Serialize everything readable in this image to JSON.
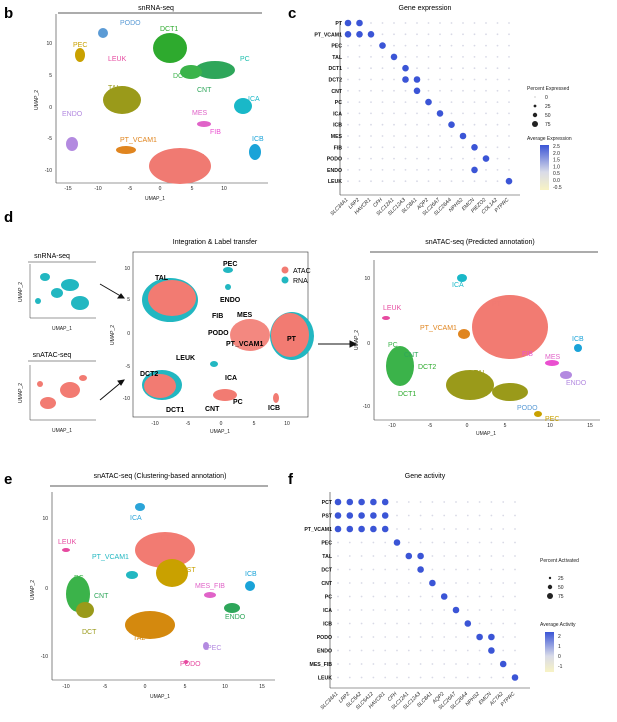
{
  "panels": {
    "b": {
      "letter": "b",
      "title": "snRNA-seq",
      "xlabel": "UMAP_1",
      "ylabel": "UMAP_2",
      "xticks": [
        "-15",
        "-10",
        "-5",
        "0",
        "5",
        "10"
      ],
      "yticks": [
        "10",
        "5",
        "0",
        "-5",
        "-10"
      ],
      "clusters": [
        {
          "name": "PODO",
          "color": "#5b9bd5"
        },
        {
          "name": "PEC",
          "color": "#c9a100"
        },
        {
          "name": "LEUK",
          "color": "#e64aa0"
        },
        {
          "name": "DCT1",
          "color": "#2eaa2e"
        },
        {
          "name": "PC",
          "color": "#1fbfae"
        },
        {
          "name": "DCT2",
          "color": "#3bb34a"
        },
        {
          "name": "CNT",
          "color": "#2ea65a"
        },
        {
          "name": "TAL",
          "color": "#9a9a1a"
        },
        {
          "name": "ICA",
          "color": "#19b8c8"
        },
        {
          "name": "ENDO",
          "color": "#b38ae0"
        },
        {
          "name": "MES",
          "color": "#e063c8"
        },
        {
          "name": "FIB",
          "color": "#ea4fd0"
        },
        {
          "name": "ICB",
          "color": "#1aa3d8"
        },
        {
          "name": "PT_VCAM1",
          "color": "#e0851f"
        },
        {
          "name": "PT",
          "color": "#f07a72"
        }
      ]
    },
    "c": {
      "letter": "c",
      "title": "Gene expression",
      "rows": [
        "PT",
        "PT_VCAM1",
        "PEC",
        "TAL",
        "DCT1",
        "DCT2",
        "CNT",
        "PC",
        "ICA",
        "ICB",
        "MES",
        "FIB",
        "PODO",
        "ENDO",
        "LEUK"
      ],
      "genes": [
        "SLC34A1",
        "LRP2",
        "HAVCR1",
        "CFH",
        "SLC12A1",
        "SLC12A3",
        "SLC8A1",
        "AQP2",
        "SLC26A7",
        "SLC26A4",
        "NPHS2",
        "EMCN",
        "PIEZO2",
        "COL1A2",
        "PTPRC"
      ],
      "legend_pct_title": "Percent Expressed",
      "legend_pct": [
        "0",
        "25",
        "50",
        "75"
      ],
      "legend_avg_title": "Average Expression",
      "legend_avg": [
        "2.5",
        "2.0",
        "1.5",
        "1.0",
        "0.5",
        "0.0",
        "-0.5"
      ]
    },
    "d": {
      "letter": "d",
      "left_top_title": "snRNA-seq",
      "left_bottom_title": "snATAC-seq",
      "mid_title": "Integration & Label transfer",
      "right_title": "snATAC-seq (Predicted annotation)",
      "xlabel": "UMAP_1",
      "ylabel": "UMAP_2",
      "mid_xticks": [
        "-10",
        "-5",
        "0",
        "5",
        "10"
      ],
      "mid_yticks": [
        "10",
        "5",
        "0",
        "-5",
        "-10"
      ],
      "right_xticks": [
        "-10",
        "-5",
        "0",
        "5",
        "10",
        "15"
      ],
      "right_yticks": [
        "10",
        "0",
        "-10"
      ],
      "legend": [
        {
          "name": "ATAC",
          "color": "#f27b72"
        },
        {
          "name": "RNA",
          "color": "#22b7c1"
        }
      ],
      "mid_labels": [
        "PEC",
        "TAL",
        "ENDO",
        "FIB",
        "MES",
        "PODO",
        "PT_VCAM1",
        "PT",
        "LEUK",
        "ICA",
        "DCT2",
        "CNT",
        "PC",
        "DCT1",
        "ICB"
      ],
      "right_labels": [
        "ICA",
        "LEUK",
        "PT",
        "PT_VCAM1",
        "ICB",
        "PC",
        "CNT",
        "DCT2",
        "TAL",
        "FIB",
        "MES",
        "ENDO",
        "DCT1",
        "PODO",
        "PEC"
      ]
    },
    "e": {
      "letter": "e",
      "title": "snATAC-seq (Clustering-based annotation)",
      "xlabel": "UMAP_1",
      "ylabel": "UMAP_2",
      "xticks": [
        "-10",
        "-5",
        "0",
        "5",
        "10",
        "15"
      ],
      "yticks": [
        "10",
        "0",
        "-10"
      ],
      "labels": [
        "ICA",
        "LEUK",
        "PCT",
        "PT_VCAM1",
        "PST",
        "ICB",
        "PC",
        "CNT",
        "MES_FIB",
        "DCT",
        "ENDO",
        "TAL",
        "PEC",
        "PODO"
      ]
    },
    "f": {
      "letter": "f",
      "title": "Gene activity",
      "rows": [
        "PCT",
        "PST",
        "PT_VCAM1",
        "PEC",
        "TAL",
        "DCT",
        "CNT",
        "PC",
        "ICA",
        "ICB",
        "PODO",
        "ENDO",
        "MES_FIB",
        "LEUK"
      ],
      "genes": [
        "SLC34A1",
        "LRP2",
        "SLC5A2",
        "SLC5A12",
        "HAVCR1",
        "CFH",
        "SLC12A1",
        "SLC12A3",
        "SLC8A1",
        "AQP2",
        "SLC26A7",
        "SLC26A4",
        "NPHS2",
        "EMCN",
        "ACTA2",
        "PTPRC"
      ],
      "legend_pct_title": "Percent Activated",
      "legend_pct": [
        "25",
        "50",
        "75"
      ],
      "legend_avg_title": "Average Activity",
      "legend_avg": [
        "2",
        "1",
        "0",
        "-1"
      ]
    }
  },
  "colors": {
    "atac": "#f27b72",
    "rna": "#22b7c1",
    "dot_high": "#3b55d6",
    "dot_low": "#f7f2c8"
  }
}
